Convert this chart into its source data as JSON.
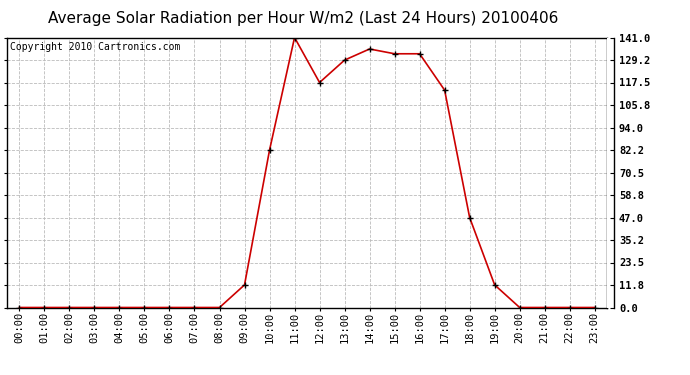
{
  "title": "Average Solar Radiation per Hour W/m2 (Last 24 Hours) 20100406",
  "copyright": "Copyright 2010 Cartronics.com",
  "hours": [
    "00:00",
    "01:00",
    "02:00",
    "03:00",
    "04:00",
    "05:00",
    "06:00",
    "07:00",
    "08:00",
    "09:00",
    "10:00",
    "11:00",
    "12:00",
    "13:00",
    "14:00",
    "15:00",
    "16:00",
    "17:00",
    "18:00",
    "19:00",
    "20:00",
    "21:00",
    "22:00",
    "23:00"
  ],
  "values": [
    0.0,
    0.0,
    0.0,
    0.0,
    0.0,
    0.0,
    0.0,
    0.0,
    0.0,
    11.8,
    82.2,
    141.0,
    117.5,
    129.2,
    135.0,
    132.5,
    132.5,
    113.5,
    47.0,
    11.8,
    0.0,
    0.0,
    0.0,
    0.0
  ],
  "line_color": "#cc0000",
  "marker": "+",
  "marker_size": 5,
  "marker_color": "#000000",
  "bg_color": "#ffffff",
  "grid_color": "#bbbbbb",
  "yticks": [
    0.0,
    11.8,
    23.5,
    35.2,
    47.0,
    58.8,
    70.5,
    82.2,
    94.0,
    105.8,
    117.5,
    129.2,
    141.0
  ],
  "ymax": 141.0,
  "ymin": 0.0,
  "title_fontsize": 11,
  "copyright_fontsize": 7,
  "tick_fontsize": 7.5,
  "border_color": "#000000"
}
